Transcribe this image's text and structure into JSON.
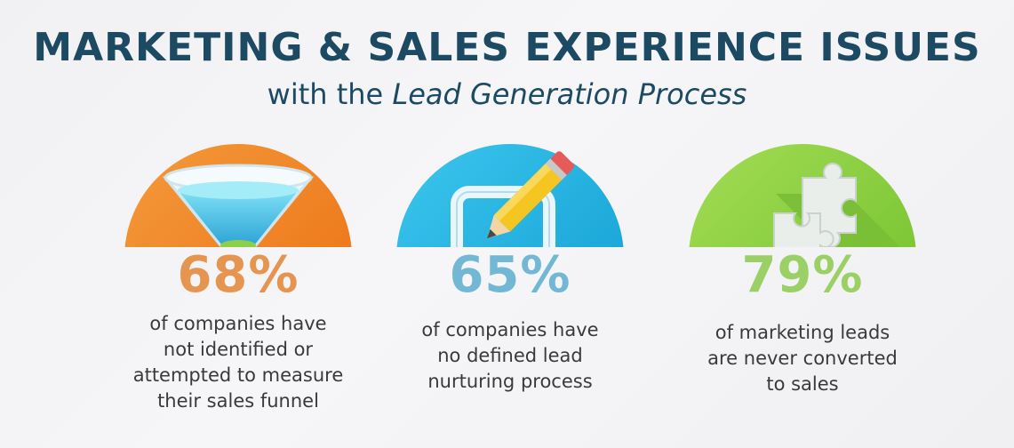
{
  "header": {
    "title": "MARKETING & SALES EXPERIENCE ISSUES",
    "subtitle_prefix": "with the ",
    "subtitle_emphasis": "Lead Generation Process"
  },
  "cards": [
    {
      "icon": "funnel-icon",
      "accent": "#e59550",
      "circle": "#f07d1e",
      "stat": "68%",
      "lines": [
        "of companies have",
        "not identified or",
        "attempted to measure",
        "their sales funnel"
      ]
    },
    {
      "icon": "edit-pencil-icon",
      "accent": "#72b8d5",
      "circle": "#1fb3e0",
      "stat": "65%",
      "lines": [
        "of companies have",
        "no defined lead",
        "nurturing process"
      ]
    },
    {
      "icon": "puzzle-piece-icon",
      "accent": "#9ad066",
      "circle": "#8ccf3a",
      "stat": "79%",
      "lines": [
        "of marketing leads",
        "are never converted",
        "to sales"
      ]
    }
  ]
}
